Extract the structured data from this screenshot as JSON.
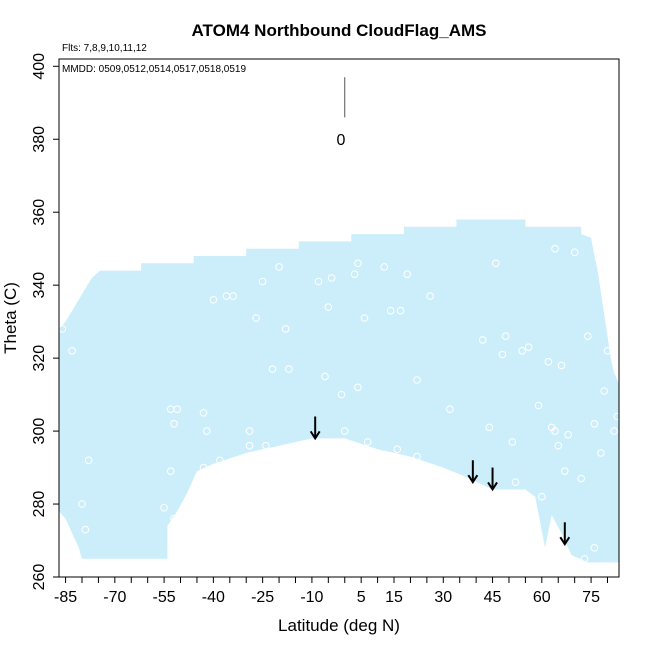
{
  "chart_data": {
    "type": "area",
    "title": "ATOM4 Northbound CloudFlag_AMS",
    "flights_note": "Flts: 7,8,9,10,11,12",
    "dates_note": "MMDD: 0509,0512,0514,0517,0518,0519",
    "xlabel": "Latitude (deg N)",
    "ylabel": "Theta (C)",
    "xlim": [
      -87,
      83.5
    ],
    "ylim": [
      260,
      402
    ],
    "x_ticks": [
      -85,
      -70,
      -55,
      -40,
      -25,
      -10,
      5,
      15,
      30,
      45,
      60,
      75
    ],
    "y_ticks": [
      260,
      280,
      300,
      320,
      340,
      360,
      380,
      400
    ],
    "legend_label": "0",
    "colors": {
      "fill": "#cceefb",
      "point": "#ffffff",
      "axis": "#000000"
    },
    "cloud_region": {
      "upper": [
        [
          -87,
          328
        ],
        [
          -85,
          330
        ],
        [
          -83,
          333
        ],
        [
          -81,
          336
        ],
        [
          -79,
          339
        ],
        [
          -77,
          342
        ],
        [
          -74.5,
          344
        ],
        [
          -62,
          344
        ],
        [
          -62,
          346
        ],
        [
          -46,
          346
        ],
        [
          -46,
          348
        ],
        [
          -30,
          348
        ],
        [
          -30,
          350
        ],
        [
          -14,
          350
        ],
        [
          -14,
          352
        ],
        [
          2,
          352
        ],
        [
          2,
          354
        ],
        [
          18,
          354
        ],
        [
          18,
          356
        ],
        [
          34,
          356
        ],
        [
          34,
          358
        ],
        [
          55,
          358
        ],
        [
          55,
          356
        ],
        [
          72,
          356
        ],
        [
          72,
          354
        ],
        [
          75,
          353
        ],
        [
          76,
          348
        ],
        [
          77,
          344
        ],
        [
          78,
          338
        ],
        [
          79,
          332
        ],
        [
          80,
          326
        ],
        [
          81,
          320
        ],
        [
          82,
          316
        ],
        [
          83.5,
          313
        ],
        [
          83.5,
          264
        ]
      ],
      "lower": [
        [
          -87,
          278
        ],
        [
          -85,
          276
        ],
        [
          -83,
          272
        ],
        [
          -81,
          268
        ],
        [
          -80,
          265
        ],
        [
          -54,
          265
        ],
        [
          -54,
          274
        ],
        [
          -51,
          278
        ],
        [
          -48,
          283
        ],
        [
          -45,
          289
        ],
        [
          -40,
          291
        ],
        [
          -30,
          294
        ],
        [
          -20,
          296
        ],
        [
          -10,
          298
        ],
        [
          0,
          298
        ],
        [
          10,
          295
        ],
        [
          20,
          293
        ],
        [
          30,
          290
        ],
        [
          38,
          287
        ],
        [
          45,
          284
        ],
        [
          55,
          284
        ],
        [
          58,
          282
        ],
        [
          61,
          268
        ],
        [
          63,
          277
        ],
        [
          66,
          272
        ],
        [
          69,
          266
        ],
        [
          74,
          264
        ],
        [
          83.5,
          264
        ]
      ]
    },
    "points": [
      [
        -86,
        328
      ],
      [
        -83,
        322
      ],
      [
        -78,
        292
      ],
      [
        -80,
        280
      ],
      [
        -79,
        273
      ],
      [
        -55,
        279
      ],
      [
        -53,
        306
      ],
      [
        -51,
        306
      ],
      [
        -52,
        302
      ],
      [
        -53,
        289
      ],
      [
        -52,
        276
      ],
      [
        -48,
        280
      ],
      [
        -43,
        305
      ],
      [
        -42,
        300
      ],
      [
        -43,
        290
      ],
      [
        -38,
        292
      ],
      [
        -40,
        336
      ],
      [
        -36,
        337
      ],
      [
        -34,
        337
      ],
      [
        -29,
        300
      ],
      [
        -29,
        296
      ],
      [
        -24,
        296
      ],
      [
        -27,
        331
      ],
      [
        -25,
        341
      ],
      [
        -22,
        317
      ],
      [
        -20,
        345
      ],
      [
        -18,
        328
      ],
      [
        -17,
        317
      ],
      [
        -8,
        341
      ],
      [
        -6,
        315
      ],
      [
        -5,
        334
      ],
      [
        -4,
        342
      ],
      [
        -1,
        310
      ],
      [
        0,
        300
      ],
      [
        3,
        343
      ],
      [
        4,
        346
      ],
      [
        4,
        312
      ],
      [
        6,
        331
      ],
      [
        7,
        297
      ],
      [
        12,
        345
      ],
      [
        14,
        333
      ],
      [
        16,
        295
      ],
      [
        17,
        333
      ],
      [
        19,
        343
      ],
      [
        22,
        314
      ],
      [
        22,
        293
      ],
      [
        26,
        337
      ],
      [
        32,
        306
      ],
      [
        42,
        325
      ],
      [
        44,
        301
      ],
      [
        46,
        346
      ],
      [
        48,
        321
      ],
      [
        49,
        326
      ],
      [
        51,
        297
      ],
      [
        52,
        286
      ],
      [
        54,
        322
      ],
      [
        56,
        323
      ],
      [
        59,
        307
      ],
      [
        60,
        282
      ],
      [
        62,
        319
      ],
      [
        63,
        301
      ],
      [
        64,
        300
      ],
      [
        64,
        350
      ],
      [
        65,
        296
      ],
      [
        66,
        318
      ],
      [
        67,
        289
      ],
      [
        68,
        299
      ],
      [
        70,
        349
      ],
      [
        72,
        287
      ],
      [
        74,
        326
      ],
      [
        76,
        302
      ],
      [
        78,
        294
      ],
      [
        79,
        311
      ],
      [
        80,
        322
      ],
      [
        76,
        268
      ],
      [
        73,
        265
      ],
      [
        82,
        300
      ],
      [
        83,
        304
      ]
    ],
    "arrows": [
      {
        "x": -9,
        "y_from": 304,
        "y_to": 298
      },
      {
        "x": 39,
        "y_from": 292,
        "y_to": 286
      },
      {
        "x": 45,
        "y_from": 290,
        "y_to": 284
      },
      {
        "x": 67,
        "y_from": 275,
        "y_to": 269
      }
    ],
    "legend_bar": {
      "x": 0,
      "y_from": 386,
      "y_to": 397
    }
  }
}
